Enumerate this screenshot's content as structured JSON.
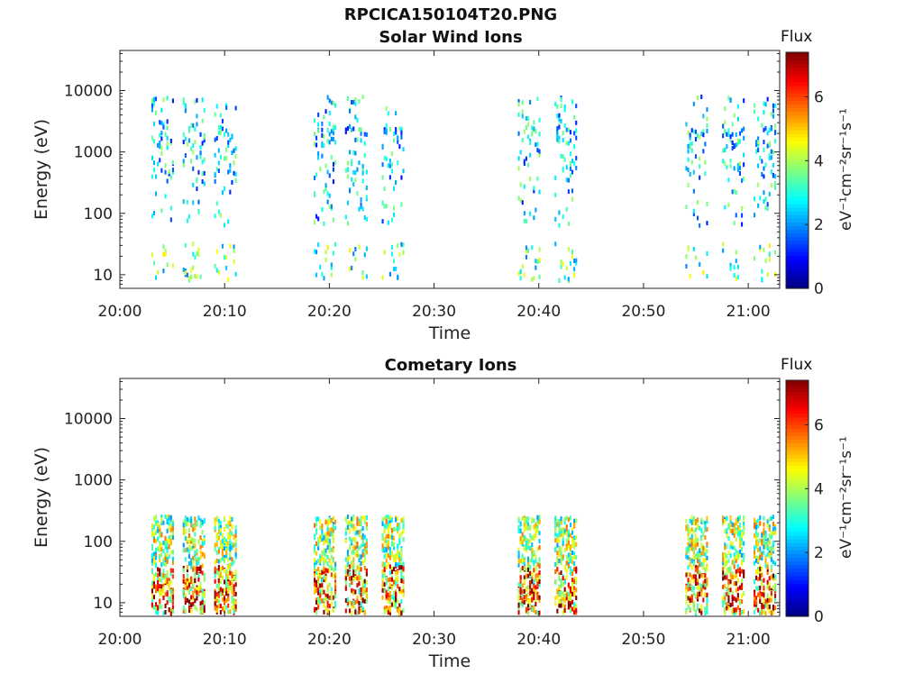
{
  "figure_title": "RPCICA150104T20.PNG",
  "colors": {
    "jet": [
      "#00007f",
      "#0000ff",
      "#007fff",
      "#00ffff",
      "#7fff7f",
      "#ffff00",
      "#ff7f00",
      "#ff0000",
      "#7f0000"
    ]
  },
  "chart_data": [
    {
      "type": "heatmap",
      "title": "Solar Wind Ions",
      "xlabel": "Time",
      "ylabel": "Energy (eV)",
      "y_scale": "log",
      "ylim": [
        6,
        45000
      ],
      "xlim": [
        "20:00",
        "21:03"
      ],
      "x_ticks": [
        "20:00",
        "20:10",
        "20:20",
        "20:30",
        "20:40",
        "20:50",
        "21:00"
      ],
      "y_ticks": [
        "10",
        "100",
        "1000",
        "10000"
      ],
      "colorbar": {
        "title": "Flux",
        "label": "eV⁻¹cm⁻²sr⁻¹s⁻¹",
        "range": [
          0,
          7.4
        ],
        "ticks": [
          "0",
          "2",
          "4",
          "6"
        ]
      },
      "bursts_start_time": [
        "20:03",
        "20:06",
        "20:09",
        "20:18.5",
        "20:21.5",
        "20:25",
        "20:38",
        "20:41.5",
        "20:54",
        "20:57.5",
        "21:00.5"
      ],
      "bursts_flux_range": [
        1,
        5
      ]
    },
    {
      "type": "heatmap",
      "title": "Cometary Ions",
      "xlabel": "Time",
      "ylabel": "Energy (eV)",
      "y_scale": "log",
      "ylim": [
        6,
        45000
      ],
      "xlim": [
        "20:00",
        "21:03"
      ],
      "x_ticks": [
        "20:00",
        "20:10",
        "20:20",
        "20:30",
        "20:40",
        "20:50",
        "21:00"
      ],
      "y_ticks": [
        "10",
        "100",
        "1000",
        "10000"
      ],
      "colorbar": {
        "title": "Flux",
        "label": "eV⁻¹cm⁻²sr⁻¹s⁻¹",
        "range": [
          0,
          7.4
        ],
        "ticks": [
          "0",
          "2",
          "4",
          "6"
        ]
      },
      "bursts_start_time": [
        "20:03",
        "20:06",
        "20:09",
        "20:18.5",
        "20:21.5",
        "20:25",
        "20:38",
        "20:41.5",
        "20:54",
        "20:57.5",
        "21:00.5"
      ],
      "bursts_flux_range": [
        2,
        7
      ]
    }
  ]
}
